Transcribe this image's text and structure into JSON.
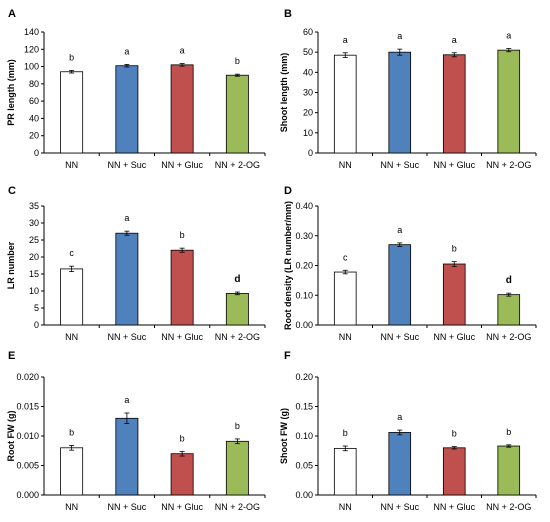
{
  "colors": {
    "NN": "#ffffff",
    "NN + Suc": "#4f81bd",
    "NN + Gluc": "#c0504d",
    "NN + 2-OG": "#9bbb59",
    "bar_stroke": "#000000",
    "axis": "#000000"
  },
  "chart_data": [
    {
      "panel": "A",
      "type": "bar",
      "ylabel": "PR length (mm)",
      "categories": [
        "NN",
        "NN + Suc",
        "NN + Gluc",
        "NN + 2-OG"
      ],
      "values": [
        94,
        101,
        102,
        90
      ],
      "errors": [
        1.5,
        1.5,
        1.5,
        1.2
      ],
      "significance": [
        "b",
        "a",
        "a",
        "b"
      ],
      "ylim": [
        0,
        140
      ],
      "yticks": [
        0,
        20,
        40,
        60,
        80,
        100,
        120,
        140
      ],
      "ytick_labels": [
        "0",
        "20",
        "40",
        "60",
        "80",
        "100",
        "120",
        "140"
      ]
    },
    {
      "panel": "B",
      "type": "bar",
      "ylabel": "Shoot length (mm)",
      "categories": [
        "NN",
        "NN + Suc",
        "NN + Gluc",
        "NN + 2-OG"
      ],
      "values": [
        48.5,
        50,
        48.7,
        51
      ],
      "errors": [
        1.2,
        1.5,
        1.0,
        0.8
      ],
      "significance": [
        "a",
        "a",
        "a",
        "a"
      ],
      "ylim": [
        0,
        60
      ],
      "yticks": [
        0,
        10,
        20,
        30,
        40,
        50,
        60
      ],
      "ytick_labels": [
        "0",
        "10",
        "20",
        "30",
        "40",
        "50",
        "60"
      ]
    },
    {
      "panel": "C",
      "type": "bar",
      "ylabel": "LR number",
      "categories": [
        "NN",
        "NN + Suc",
        "NN + Gluc",
        "NN + 2-OG"
      ],
      "values": [
        16.5,
        27,
        22,
        9.3
      ],
      "errors": [
        0.8,
        0.6,
        0.6,
        0.4
      ],
      "significance": [
        "c",
        "a",
        "b",
        "d"
      ],
      "significance_bold": [
        false,
        false,
        false,
        true
      ],
      "ylim": [
        0,
        35
      ],
      "yticks": [
        0,
        5,
        10,
        15,
        20,
        25,
        30,
        35
      ],
      "ytick_labels": [
        "0",
        "5",
        "10",
        "15",
        "20",
        "25",
        "30",
        "35"
      ]
    },
    {
      "panel": "D",
      "type": "bar",
      "ylabel": "Root density (LR number/mm)",
      "categories": [
        "NN",
        "NN + Suc",
        "NN + Gluc",
        "NN + 2-OG"
      ],
      "values": [
        0.178,
        0.27,
        0.205,
        0.102
      ],
      "errors": [
        0.006,
        0.006,
        0.008,
        0.005
      ],
      "significance": [
        "c",
        "a",
        "b",
        "d"
      ],
      "significance_bold": [
        false,
        false,
        false,
        true
      ],
      "ylim": [
        0,
        0.4
      ],
      "yticks": [
        0,
        0.1,
        0.2,
        0.3,
        0.4
      ],
      "ytick_labels": [
        "0.00",
        "0.10",
        "0.20",
        "0.30",
        "0.40"
      ]
    },
    {
      "panel": "E",
      "type": "bar",
      "ylabel": "Root FW (g)",
      "categories": [
        "NN",
        "NN + Suc",
        "NN + Gluc",
        "NN + 2-OG"
      ],
      "values": [
        0.008,
        0.013,
        0.007,
        0.0091
      ],
      "errors": [
        0.0004,
        0.0009,
        0.0004,
        0.0004
      ],
      "significance": [
        "b",
        "a",
        "b",
        "b"
      ],
      "ylim": [
        0,
        0.02
      ],
      "yticks": [
        0,
        0.005,
        0.01,
        0.015,
        0.02
      ],
      "ytick_labels": [
        "0.000",
        "0.005",
        "0.010",
        "0.015",
        "0.020"
      ]
    },
    {
      "panel": "F",
      "type": "bar",
      "ylabel": "Shoot FW (g)",
      "categories": [
        "NN",
        "NN + Suc",
        "NN + Gluc",
        "NN + 2-OG"
      ],
      "values": [
        0.079,
        0.106,
        0.08,
        0.083
      ],
      "errors": [
        0.004,
        0.004,
        0.002,
        0.002
      ],
      "significance": [
        "b",
        "a",
        "b",
        "b"
      ],
      "ylim": [
        0,
        0.2
      ],
      "yticks": [
        0,
        0.05,
        0.1,
        0.15,
        0.2
      ],
      "ytick_labels": [
        "0.00",
        "0.05",
        "0.10",
        "0.15",
        "0.20"
      ]
    }
  ]
}
